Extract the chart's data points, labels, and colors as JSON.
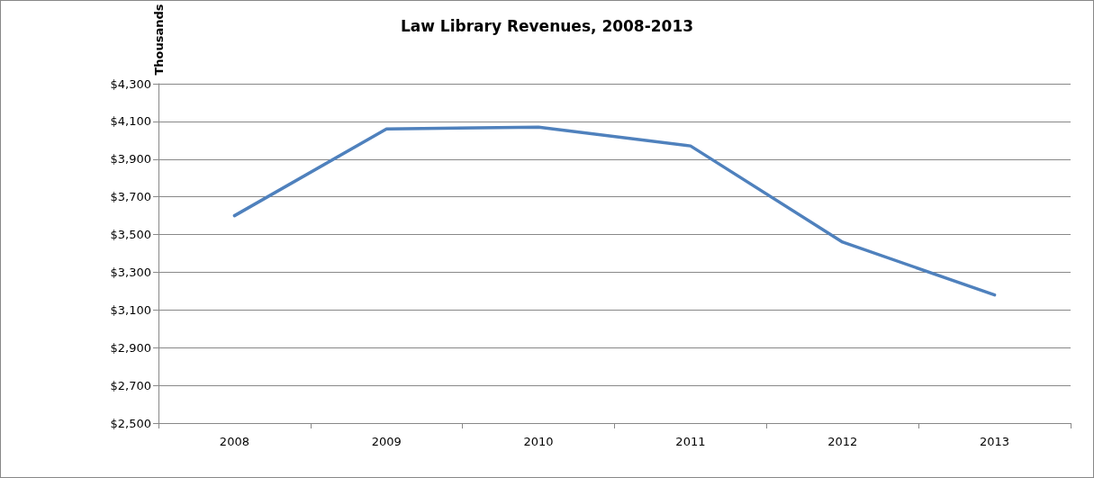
{
  "chart_data": {
    "type": "line",
    "title": "Law Library Revenues, 2008-2013",
    "ylabel": "Thousands",
    "categories": [
      "2008",
      "2009",
      "2010",
      "2011",
      "2012",
      "2013"
    ],
    "series": [
      {
        "color": "#4f81bd",
        "values": [
          3600,
          4060,
          4070,
          3970,
          3460,
          3180
        ]
      }
    ],
    "ylim": [
      2500,
      4300
    ],
    "yticks": [
      {
        "value": 2500,
        "label": "$2,500"
      },
      {
        "value": 2700,
        "label": "$2,700"
      },
      {
        "value": 2900,
        "label": "$2,900"
      },
      {
        "value": 3100,
        "label": "$3,100"
      },
      {
        "value": 3300,
        "label": "$3,300"
      },
      {
        "value": 3500,
        "label": "$3,500"
      },
      {
        "value": 3700,
        "label": "$3,700"
      },
      {
        "value": 3900,
        "label": "$3,900"
      },
      {
        "value": 4100,
        "label": "$4,100"
      },
      {
        "value": 4300,
        "label": "$4,300"
      }
    ],
    "grid": "y",
    "marker": "none",
    "line_style": "solid"
  }
}
